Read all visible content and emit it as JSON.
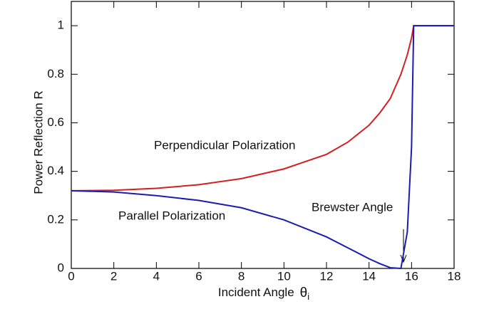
{
  "chart_data": {
    "type": "line",
    "x_label": "Incident Angle",
    "x_label_symbol": "θ",
    "x_label_subscript": "i",
    "y_label": "Power Reflection R",
    "annotations": [
      "Perpendicular Polarization",
      "Parallel Polarization",
      "Brewster Angle"
    ],
    "x": [
      0,
      2,
      4,
      6,
      8,
      10,
      12,
      13,
      14,
      14.5,
      15,
      15.5,
      15.8,
      16,
      16.1,
      18
    ],
    "series": [
      {
        "name": "Perpendicular Polarization",
        "color": "#d42020",
        "values": [
          0.32,
          0.322,
          0.33,
          0.345,
          0.37,
          0.41,
          0.47,
          0.52,
          0.59,
          0.64,
          0.7,
          0.8,
          0.88,
          0.95,
          1.0,
          1.0
        ]
      },
      {
        "name": "Parallel Polarization",
        "color": "#1c1cb0",
        "values": [
          0.32,
          0.315,
          0.3,
          0.28,
          0.25,
          0.2,
          0.13,
          0.085,
          0.04,
          0.02,
          0.003,
          0.0,
          0.15,
          0.5,
          1.0,
          1.0
        ]
      }
    ],
    "xlim": [
      0,
      18
    ],
    "ylim": [
      0,
      1.1
    ],
    "xticks": [
      0,
      2,
      4,
      6,
      8,
      10,
      12,
      14,
      16,
      18
    ],
    "yticks": [
      0,
      0.2,
      0.4,
      0.6,
      0.8,
      1
    ]
  }
}
